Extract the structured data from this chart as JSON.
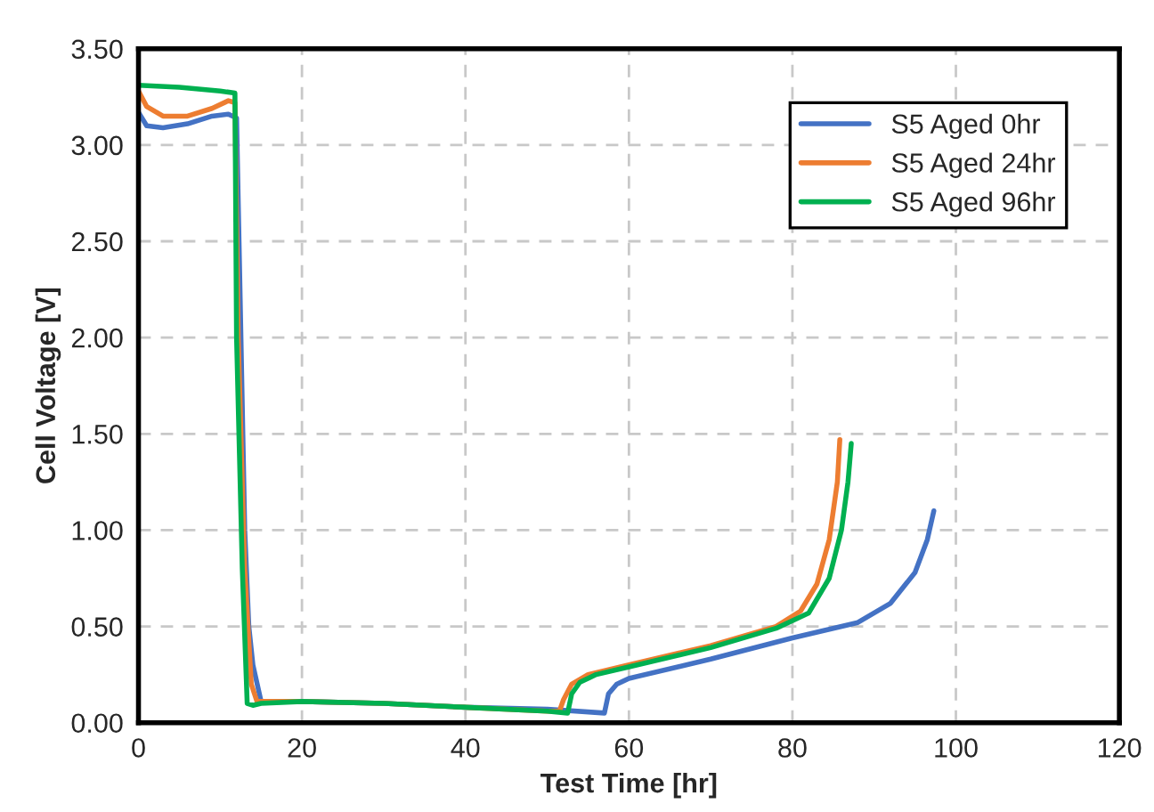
{
  "chart_data": {
    "type": "line",
    "xlabel": "Test Time [hr]",
    "ylabel": "Cell Voltage [V]",
    "xlim": [
      0,
      120
    ],
    "xticks": [
      0,
      20,
      40,
      60,
      80,
      100,
      120
    ],
    "ylim": [
      0,
      3.5
    ],
    "yticks": [
      {
        "value": 0,
        "label": "0.00"
      },
      {
        "value": 0.5,
        "label": "0.50"
      },
      {
        "value": 1,
        "label": "1.00"
      },
      {
        "value": 1.5,
        "label": "1.50"
      },
      {
        "value": 2,
        "label": "2.00"
      },
      {
        "value": 2.5,
        "label": "2.50"
      },
      {
        "value": 3,
        "label": "3.00"
      },
      {
        "value": 3.5,
        "label": "3.50"
      }
    ],
    "grid": true,
    "legend": "top right",
    "marker": "none",
    "line_style": "solid",
    "series": [
      {
        "name": "S5 Aged 0hr",
        "color": "#4472c4",
        "x": [
          0,
          1,
          3,
          6,
          9,
          11,
          12,
          12.3,
          13,
          13.5,
          14,
          15,
          20,
          30,
          40,
          50,
          57,
          57.5,
          58.5,
          60,
          70,
          80,
          88,
          92,
          95,
          96.5,
          97.3
        ],
        "values": [
          3.17,
          3.1,
          3.09,
          3.11,
          3.15,
          3.16,
          3.14,
          2.5,
          1.0,
          0.5,
          0.3,
          0.11,
          0.11,
          0.1,
          0.08,
          0.07,
          0.05,
          0.15,
          0.2,
          0.23,
          0.33,
          0.44,
          0.52,
          0.62,
          0.78,
          0.95,
          1.1
        ]
      },
      {
        "name": "S5 Aged 24hr",
        "color": "#ed7d31",
        "x": [
          0,
          1,
          3,
          6,
          9,
          11,
          11.8,
          12.2,
          13,
          13.8,
          14.5,
          20,
          30,
          40,
          50,
          51.5,
          52,
          53,
          55,
          60,
          70,
          78,
          81,
          83,
          84.5,
          85.5,
          85.8
        ],
        "values": [
          3.28,
          3.2,
          3.15,
          3.15,
          3.19,
          3.23,
          3.22,
          2.0,
          0.8,
          0.2,
          0.11,
          0.11,
          0.1,
          0.08,
          0.06,
          0.06,
          0.12,
          0.2,
          0.25,
          0.3,
          0.4,
          0.5,
          0.58,
          0.72,
          0.95,
          1.25,
          1.47
        ]
      },
      {
        "name": "S5 Aged 96hr",
        "color": "#00b050",
        "x": [
          0,
          5,
          10,
          11.8,
          12,
          12.7,
          13.3,
          14,
          15,
          20,
          30,
          40,
          50,
          52.5,
          53,
          54,
          56,
          60,
          70,
          78,
          82,
          84.5,
          86,
          86.8,
          87.2
        ],
        "values": [
          3.31,
          3.3,
          3.28,
          3.27,
          2.0,
          0.8,
          0.1,
          0.09,
          0.1,
          0.11,
          0.1,
          0.08,
          0.06,
          0.05,
          0.15,
          0.21,
          0.25,
          0.29,
          0.39,
          0.49,
          0.57,
          0.75,
          1.0,
          1.25,
          1.45
        ]
      }
    ]
  }
}
